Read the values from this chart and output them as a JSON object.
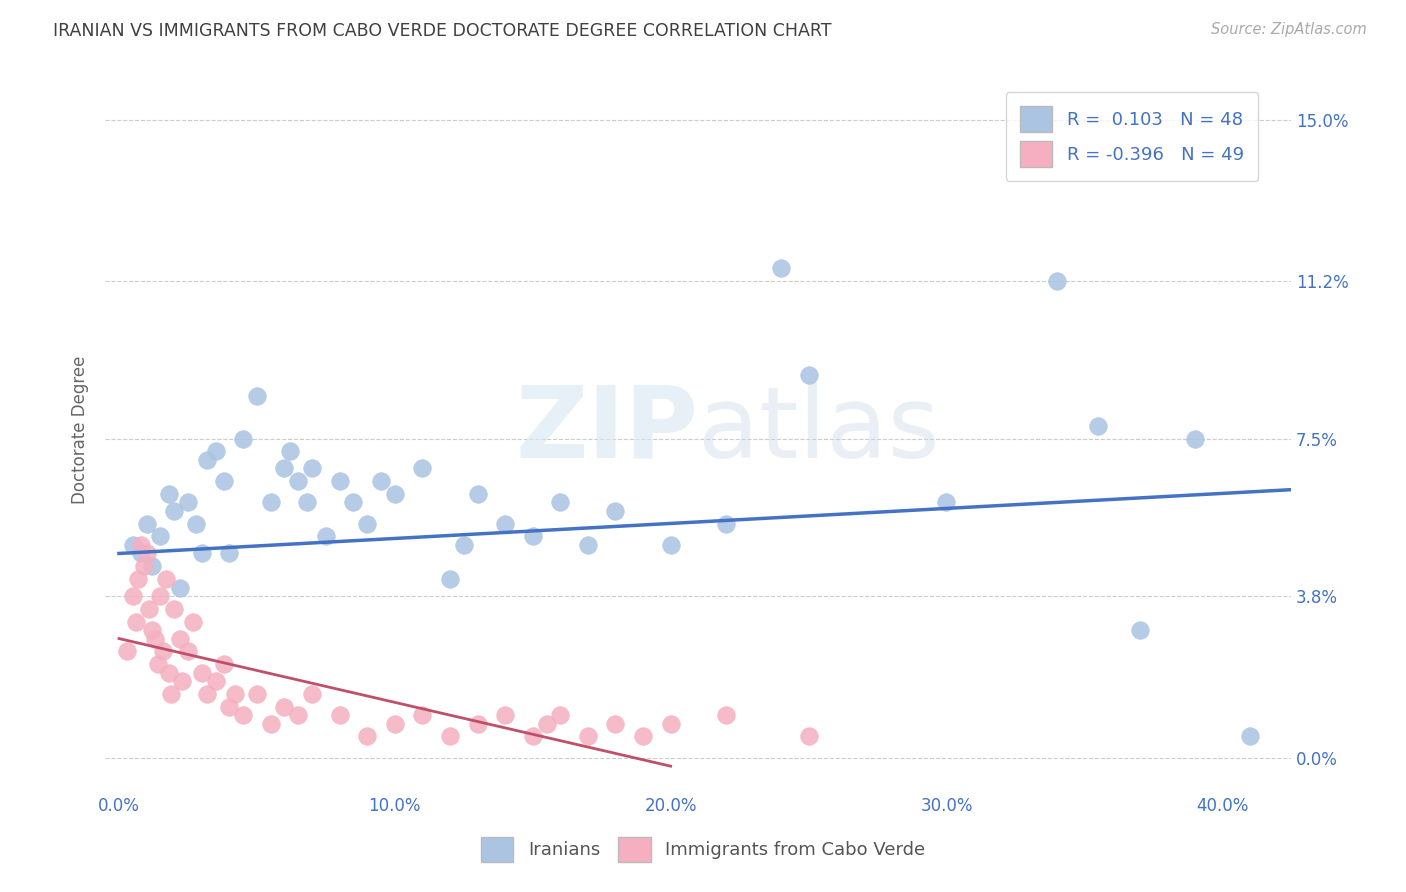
{
  "title": "IRANIAN VS IMMIGRANTS FROM CABO VERDE DOCTORATE DEGREE CORRELATION CHART",
  "source": "Source: ZipAtlas.com",
  "xlabel_ticks": [
    "0.0%",
    "10.0%",
    "20.0%",
    "30.0%",
    "40.0%"
  ],
  "xlabel_vals": [
    0.0,
    0.1,
    0.2,
    0.3,
    0.4
  ],
  "ylabel": "Doctorate Degree",
  "ylabel_ticks": [
    "0.0%",
    "3.8%",
    "7.5%",
    "11.2%",
    "15.0%"
  ],
  "ylabel_vals": [
    0.0,
    0.038,
    0.075,
    0.112,
    0.15
  ],
  "xlim": [
    -0.005,
    0.425
  ],
  "ylim": [
    -0.008,
    0.162
  ],
  "legend_label1": "Iranians",
  "legend_label2": "Immigrants from Cabo Verde",
  "r1": 0.103,
  "n1": 48,
  "r2": -0.396,
  "n2": 49,
  "color_blue": "#aac4e2",
  "color_pink": "#f5afc0",
  "line_color_blue": "#4472c4",
  "line_color_pink": "#c0506a",
  "title_color": "#404040",
  "axis_label_color": "#4472c4",
  "watermark_color": "#d8e6f2",
  "iranians_x": [
    0.005,
    0.008,
    0.01,
    0.012,
    0.015,
    0.018,
    0.02,
    0.022,
    0.025,
    0.028,
    0.03,
    0.032,
    0.035,
    0.038,
    0.04,
    0.045,
    0.05,
    0.055,
    0.06,
    0.062,
    0.065,
    0.068,
    0.07,
    0.075,
    0.08,
    0.085,
    0.09,
    0.095,
    0.1,
    0.11,
    0.12,
    0.125,
    0.13,
    0.14,
    0.15,
    0.16,
    0.17,
    0.18,
    0.2,
    0.22,
    0.24,
    0.25,
    0.3,
    0.34,
    0.355,
    0.37,
    0.39,
    0.41
  ],
  "iranians_y": [
    0.05,
    0.048,
    0.055,
    0.045,
    0.052,
    0.062,
    0.058,
    0.04,
    0.06,
    0.055,
    0.048,
    0.07,
    0.072,
    0.065,
    0.048,
    0.075,
    0.085,
    0.06,
    0.068,
    0.072,
    0.065,
    0.06,
    0.068,
    0.052,
    0.065,
    0.06,
    0.055,
    0.065,
    0.062,
    0.068,
    0.042,
    0.05,
    0.062,
    0.055,
    0.052,
    0.06,
    0.05,
    0.058,
    0.05,
    0.055,
    0.115,
    0.09,
    0.06,
    0.112,
    0.078,
    0.03,
    0.075,
    0.005
  ],
  "caboverde_x": [
    0.003,
    0.005,
    0.006,
    0.007,
    0.008,
    0.009,
    0.01,
    0.011,
    0.012,
    0.013,
    0.014,
    0.015,
    0.016,
    0.017,
    0.018,
    0.019,
    0.02,
    0.022,
    0.023,
    0.025,
    0.027,
    0.03,
    0.032,
    0.035,
    0.038,
    0.04,
    0.042,
    0.045,
    0.05,
    0.055,
    0.06,
    0.065,
    0.07,
    0.08,
    0.09,
    0.1,
    0.11,
    0.12,
    0.13,
    0.14,
    0.15,
    0.155,
    0.16,
    0.17,
    0.18,
    0.19,
    0.2,
    0.22,
    0.25
  ],
  "caboverde_y": [
    0.025,
    0.038,
    0.032,
    0.042,
    0.05,
    0.045,
    0.048,
    0.035,
    0.03,
    0.028,
    0.022,
    0.038,
    0.025,
    0.042,
    0.02,
    0.015,
    0.035,
    0.028,
    0.018,
    0.025,
    0.032,
    0.02,
    0.015,
    0.018,
    0.022,
    0.012,
    0.015,
    0.01,
    0.015,
    0.008,
    0.012,
    0.01,
    0.015,
    0.01,
    0.005,
    0.008,
    0.01,
    0.005,
    0.008,
    0.01,
    0.005,
    0.008,
    0.01,
    0.005,
    0.008,
    0.005,
    0.008,
    0.01,
    0.005
  ],
  "iran_line_x0": 0.0,
  "iran_line_x1": 0.425,
  "iran_line_y0": 0.048,
  "iran_line_y1": 0.063,
  "cabo_line_x0": 0.0,
  "cabo_line_x1": 0.2,
  "cabo_line_y0": 0.028,
  "cabo_line_y1": -0.002
}
